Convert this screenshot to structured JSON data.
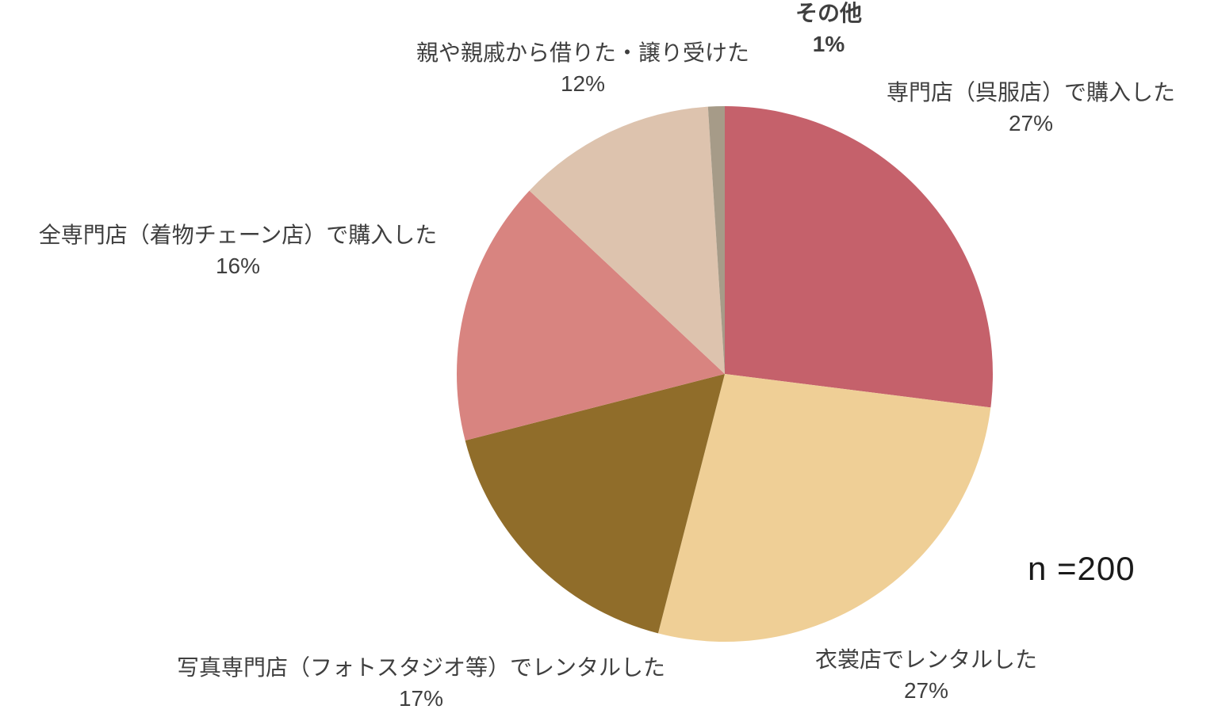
{
  "page": {
    "background": "#ffffff"
  },
  "colors": {
    "label_text": "#3f3f3f",
    "n_text": "#1a1a1a"
  },
  "chart_data": {
    "type": "pie",
    "title": "",
    "n_label": "n =200",
    "unit": "%",
    "start_angle": "12-oclock",
    "direction": "clockwise",
    "legend_position": "outside-labels",
    "slices": [
      {
        "label": "専門店（呉服店）で購入した",
        "value": 27,
        "pct_label": "27%",
        "color": "#c5616b",
        "bold": false
      },
      {
        "label": "衣裳店でレンタルした",
        "value": 27,
        "pct_label": "27%",
        "color": "#efcf96",
        "bold": false
      },
      {
        "label": "写真専門店（フォトスタジオ等）でレンタルした",
        "value": 17,
        "pct_label": "17%",
        "color": "#906d2a",
        "bold": false
      },
      {
        "label": "全専門店（着物チェーン店）で購入した",
        "value": 16,
        "pct_label": "16%",
        "color": "#d88480",
        "bold": false
      },
      {
        "label": "親や親戚から借りた・譲り受けた",
        "value": 12,
        "pct_label": "12%",
        "color": "#ddc3ae",
        "bold": false
      },
      {
        "label": "その他",
        "value": 1,
        "pct_label": "1%",
        "color": "#a69b88",
        "bold": true
      }
    ]
  }
}
